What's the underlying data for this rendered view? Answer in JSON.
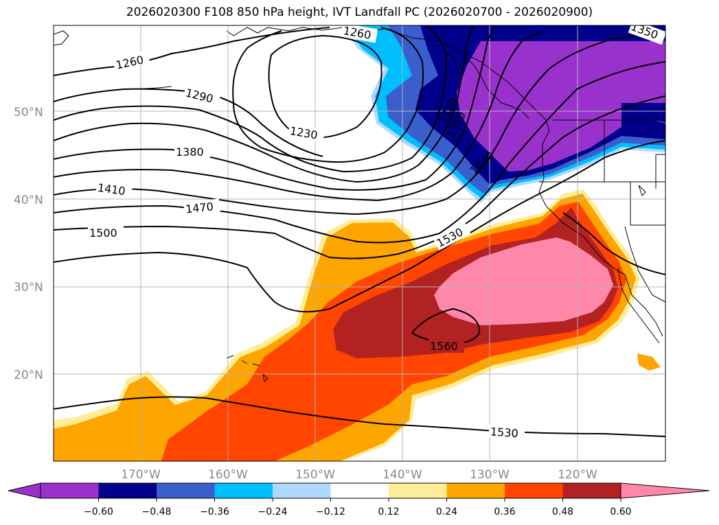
{
  "title": "2026020300 F108 850 hPa height, IVT Landfall PC (2026020700 - 2026020900)",
  "colors": {
    "purple": "#9932CC",
    "navy": "#00008B",
    "royal": "#3A5FCD",
    "cyan": "#00BFFF",
    "lightblue": "#ADD8FF",
    "white": "#FFFFFF",
    "lightyellow": "#FFEE99",
    "orange": "#FFA500",
    "orangered": "#FF4500",
    "firebrick": "#B22222",
    "pink": "#FF88AA"
  },
  "map": {
    "lat_labels": [
      "50°N",
      "40°N",
      "30°N",
      "20°N"
    ],
    "lon_labels": [
      "170°W",
      "160°W",
      "150°W",
      "140°W",
      "130°W",
      "120°W"
    ],
    "contour_labels": {
      "c1260a": "1260",
      "c1260b": "1260",
      "c1350": "1350",
      "c1290": "1290",
      "c1230": "1230",
      "c1380": "1380",
      "c1410": "1410",
      "c1470": "1470",
      "c1500": "1500",
      "c1530a": "1530",
      "c1530b": "1530",
      "c1560": "1560",
      "c1320": "1320",
      "c1350b": "1350",
      "c1440": "1440"
    }
  },
  "colorbar": {
    "ticks": [
      "−0.60",
      "−0.48",
      "−0.36",
      "−0.24",
      "−0.12",
      "0.12",
      "0.24",
      "0.36",
      "0.48",
      "0.60"
    ],
    "levels": [
      -0.6,
      -0.48,
      -0.36,
      -0.24,
      -0.12,
      0.12,
      0.24,
      0.36,
      0.48,
      0.6
    ]
  }
}
